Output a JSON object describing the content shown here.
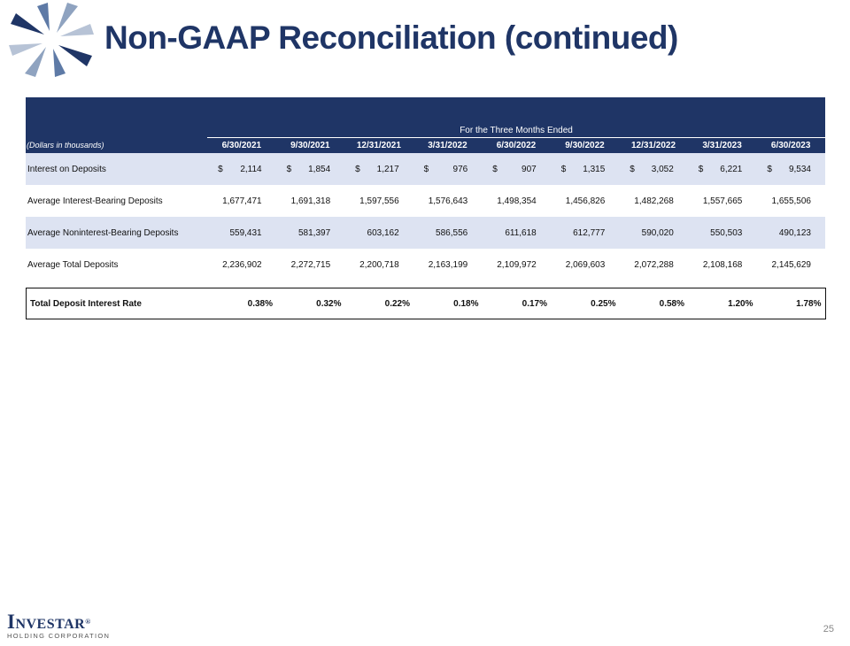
{
  "slide": {
    "title": "Non-GAAP Reconciliation (continued)",
    "page_number": "25"
  },
  "table": {
    "group_header": "For the Three Months Ended",
    "unit_label": "(Dollars in thousands)",
    "periods": [
      "6/30/2021",
      "9/30/2021",
      "12/31/2021",
      "3/31/2022",
      "6/30/2022",
      "9/30/2022",
      "12/31/2022",
      "3/31/2023",
      "6/30/2023"
    ],
    "rows": [
      {
        "label": "Interest on Deposits",
        "currency_symbol": "$",
        "values": [
          "2,114",
          "1,854",
          "1,217",
          "976",
          "907",
          "1,315",
          "3,052",
          "6,221",
          "9,534"
        ]
      },
      {
        "label": "Average Interest-Bearing Deposits",
        "values": [
          "1,677,471",
          "1,691,318",
          "1,597,556",
          "1,576,643",
          "1,498,354",
          "1,456,826",
          "1,482,268",
          "1,557,665",
          "1,655,506"
        ]
      },
      {
        "label": "Average Noninterest-Bearing Deposits",
        "values": [
          "559,431",
          "581,397",
          "603,162",
          "586,556",
          "611,618",
          "612,777",
          "590,020",
          "550,503",
          "490,123"
        ]
      },
      {
        "label": "Average Total Deposits",
        "values": [
          "2,236,902",
          "2,272,715",
          "2,200,718",
          "2,163,199",
          "2,109,972",
          "2,069,603",
          "2,072,288",
          "2,108,168",
          "2,145,629"
        ]
      }
    ],
    "total_row": {
      "label": "Total Deposit Interest Rate",
      "values": [
        "0.38%",
        "0.32%",
        "0.22%",
        "0.18%",
        "0.17%",
        "0.25%",
        "0.58%",
        "1.20%",
        "1.78%"
      ]
    }
  },
  "footer": {
    "brand": "Investar",
    "registered_mark": "®",
    "subtitle": "HOLDING CORPORATION"
  },
  "colors": {
    "brand_navy": "#1f3566",
    "row_shade": "#dde3f2"
  }
}
